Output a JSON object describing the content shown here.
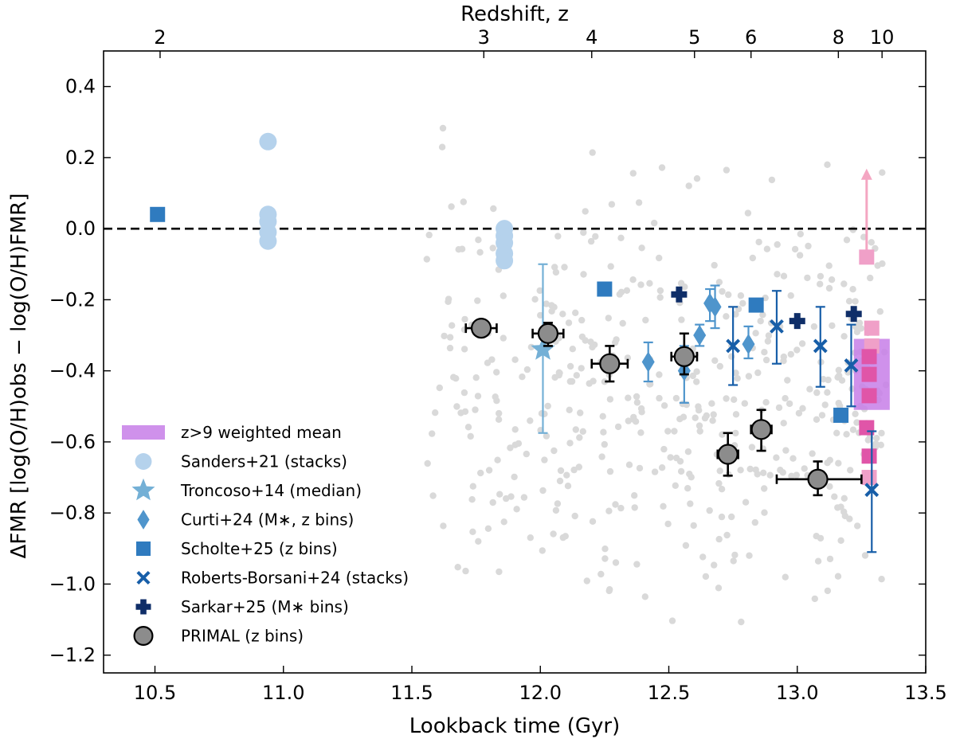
{
  "chart_data": {
    "type": "scatter",
    "title": "",
    "xlabel": "Lookback time (Gyr)",
    "ylabel": "ΔFMR  [log(O/H)obs − log(O/H)FMR]",
    "x2label": "Redshift, z",
    "xlim": [
      10.3,
      13.5
    ],
    "ylim": [
      -1.25,
      0.5
    ],
    "x_ticks": [
      10.5,
      11.0,
      11.5,
      12.0,
      12.5,
      13.0,
      13.5
    ],
    "x_tick_labels": [
      "10.5",
      "11.0",
      "11.5",
      "12.0",
      "12.5",
      "13.0",
      "13.5"
    ],
    "y_ticks": [
      0.4,
      0.2,
      0.0,
      -0.2,
      -0.4,
      -0.6,
      -0.8,
      -1.0,
      -1.2
    ],
    "y_tick_labels": [
      "0.4",
      "0.2",
      "0.0",
      "−0.2",
      "−0.4",
      "−0.6",
      "−0.8",
      "−1.0",
      "−1.2"
    ],
    "top_ticks": [
      {
        "label": "2",
        "x": 10.52
      },
      {
        "label": "3",
        "x": 11.78
      },
      {
        "label": "4",
        "x": 12.2
      },
      {
        "label": "5",
        "x": 12.6
      },
      {
        "label": "6",
        "x": 12.82
      },
      {
        "label": "8",
        "x": 13.16
      },
      {
        "label": "10",
        "x": 13.33
      }
    ],
    "reference_line": {
      "y": 0.0,
      "style": "dashed",
      "color": "#000000"
    },
    "grid": false,
    "legend_position": "lower-left",
    "background_points": {
      "color": "#d9d9d9",
      "x_range": [
        11.55,
        13.35
      ],
      "y_range": [
        -1.22,
        0.39
      ],
      "count": 480
    },
    "series": [
      {
        "name": "z>9 weighted mean",
        "marker": "band",
        "color": "#c77ee8",
        "band": {
          "x": [
            13.22,
            13.36
          ],
          "y": [
            -0.51,
            -0.31
          ]
        }
      },
      {
        "name": "Sanders+21 (stacks)",
        "marker": "circle",
        "color": "#b5d2ec",
        "points": [
          {
            "x": 10.94,
            "y": 0.245
          },
          {
            "x": 10.94,
            "y": 0.04
          },
          {
            "x": 10.94,
            "y": 0.02
          },
          {
            "x": 10.94,
            "y": -0.01
          },
          {
            "x": 10.94,
            "y": -0.035
          },
          {
            "x": 11.86,
            "y": 0.0
          },
          {
            "x": 11.86,
            "y": -0.02
          },
          {
            "x": 11.86,
            "y": -0.04
          },
          {
            "x": 11.86,
            "y": -0.07
          },
          {
            "x": 11.86,
            "y": -0.09
          }
        ]
      },
      {
        "name": "Troncoso+14 (median)",
        "marker": "star",
        "color": "#74b0d6",
        "points": [
          {
            "x": 12.01,
            "y": -0.34,
            "ylo": -0.575,
            "yhi": -0.1
          }
        ]
      },
      {
        "name": "Curti+24 (M*, z bins)",
        "marker": "diamond",
        "color": "#4f95cc",
        "points": [
          {
            "x": 12.42,
            "y": -0.375,
            "ylo": -0.43,
            "yhi": -0.32
          },
          {
            "x": 12.56,
            "y": -0.4,
            "ylo": -0.49,
            "yhi": -0.33
          },
          {
            "x": 12.62,
            "y": -0.3,
            "ylo": -0.33,
            "yhi": -0.27
          },
          {
            "x": 12.66,
            "y": -0.21,
            "ylo": -0.26,
            "yhi": -0.17
          },
          {
            "x": 12.68,
            "y": -0.22,
            "ylo": -0.28,
            "yhi": -0.16
          },
          {
            "x": 12.81,
            "y": -0.325,
            "ylo": -0.365,
            "yhi": -0.275
          }
        ]
      },
      {
        "name": "Scholte+25 (z bins)",
        "marker": "square",
        "color": "#2f7bbf",
        "points": [
          {
            "x": 10.51,
            "y": 0.04
          },
          {
            "x": 12.25,
            "y": -0.17
          },
          {
            "x": 12.84,
            "y": -0.215
          },
          {
            "x": 13.17,
            "y": -0.525
          }
        ]
      },
      {
        "name": "Roberts-Borsani+24 (stacks)",
        "marker": "x",
        "color": "#175ea8",
        "points": [
          {
            "x": 12.75,
            "y": -0.33,
            "ylo": -0.44,
            "yhi": -0.22
          },
          {
            "x": 12.92,
            "y": -0.275,
            "ylo": -0.38,
            "yhi": -0.175
          },
          {
            "x": 13.09,
            "y": -0.33,
            "ylo": -0.445,
            "yhi": -0.22
          },
          {
            "x": 13.21,
            "y": -0.385,
            "ylo": -0.5,
            "yhi": -0.27
          },
          {
            "x": 13.29,
            "y": -0.735,
            "ylo": -0.91,
            "yhi": -0.57
          }
        ]
      },
      {
        "name": "Sarkar+25 (M* bins)",
        "marker": "plus",
        "color": "#0f2e68",
        "points": [
          {
            "x": 12.54,
            "y": -0.185
          },
          {
            "x": 13.0,
            "y": -0.26
          },
          {
            "x": 13.22,
            "y": -0.24
          }
        ]
      },
      {
        "name": "PRIMAL (z bins)",
        "marker": "circle",
        "color": "#8c8c8c",
        "points": [
          {
            "x": 11.77,
            "y": -0.28,
            "xlo": 11.71,
            "xhi": 11.83,
            "ylo": -0.3,
            "yhi": -0.26
          },
          {
            "x": 12.03,
            "y": -0.295,
            "xlo": 11.97,
            "xhi": 12.09,
            "ylo": -0.33,
            "yhi": -0.265
          },
          {
            "x": 12.27,
            "y": -0.38,
            "xlo": 12.2,
            "xhi": 12.34,
            "ylo": -0.43,
            "yhi": -0.33
          },
          {
            "x": 12.56,
            "y": -0.36,
            "xlo": 12.51,
            "xhi": 12.61,
            "ylo": -0.41,
            "yhi": -0.295
          },
          {
            "x": 12.73,
            "y": -0.635,
            "xlo": 12.69,
            "xhi": 12.77,
            "ylo": -0.695,
            "yhi": -0.575
          },
          {
            "x": 12.86,
            "y": -0.565,
            "xlo": 12.82,
            "xhi": 12.9,
            "ylo": -0.625,
            "yhi": -0.51
          },
          {
            "x": 13.08,
            "y": -0.705,
            "xlo": 12.92,
            "xhi": 13.25,
            "ylo": -0.75,
            "yhi": -0.655
          }
        ]
      },
      {
        "name": "",
        "marker": "square",
        "color": "#f0a0c8",
        "points": [
          {
            "x": 13.27,
            "y": -0.08
          },
          {
            "x": 13.29,
            "y": -0.28
          },
          {
            "x": 13.29,
            "y": -0.33
          },
          {
            "x": 13.28,
            "y": -0.7
          }
        ]
      },
      {
        "name": "",
        "marker": "square",
        "color": "#e055a8",
        "points": [
          {
            "x": 13.28,
            "y": -0.36
          },
          {
            "x": 13.28,
            "y": -0.41
          },
          {
            "x": 13.28,
            "y": -0.47
          },
          {
            "x": 13.27,
            "y": -0.56
          },
          {
            "x": 13.28,
            "y": -0.64
          }
        ]
      }
    ],
    "upper_limit": {
      "x": 13.27,
      "y_from": -0.1,
      "y_to": 0.16,
      "color": "#f4a6c2"
    },
    "legend": [
      {
        "label": "z>9 weighted mean",
        "marker": "band",
        "color": "#c77ee8"
      },
      {
        "label": "Sanders+21 (stacks)",
        "marker": "circle",
        "color": "#b5d2ec"
      },
      {
        "label": "Troncoso+14 (median)",
        "marker": "star",
        "color": "#74b0d6"
      },
      {
        "label": "Curti+24 (M∗, z bins)",
        "marker": "diamond",
        "color": "#4f95cc"
      },
      {
        "label": "Scholte+25 (z bins)",
        "marker": "square",
        "color": "#2f7bbf"
      },
      {
        "label": "Roberts-Borsani+24 (stacks)",
        "marker": "x",
        "color": "#175ea8"
      },
      {
        "label": "Sarkar+25 (M∗ bins)",
        "marker": "plus",
        "color": "#0f2e68"
      },
      {
        "label": "PRIMAL (z bins)",
        "marker": "circle-edge",
        "color": "#8c8c8c"
      }
    ]
  }
}
